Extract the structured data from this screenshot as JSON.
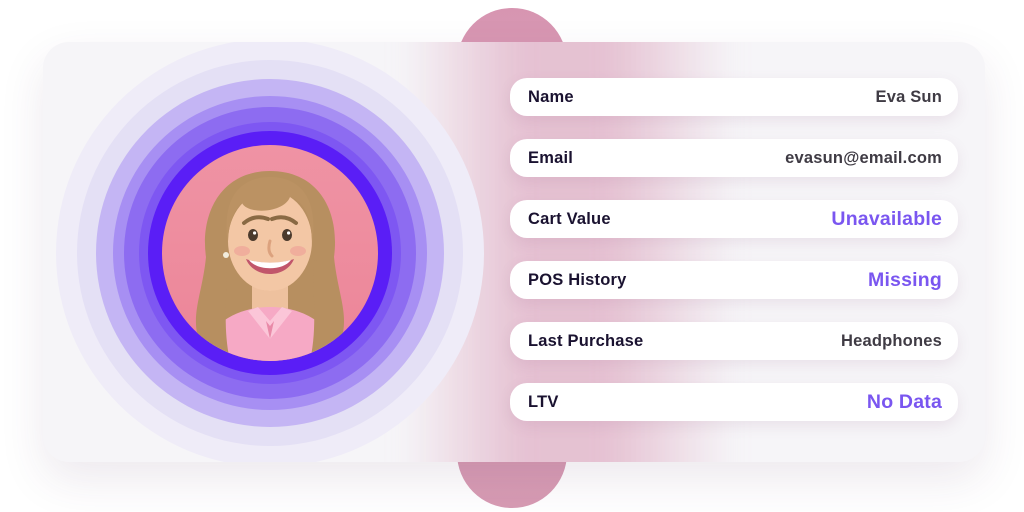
{
  "profile": {
    "rows": [
      {
        "label": "Name",
        "value": "Eva Sun",
        "accent": false
      },
      {
        "label": "Email",
        "value": "evasun@email.com",
        "accent": false
      },
      {
        "label": "Cart Value",
        "value": "Unavailable",
        "accent": true
      },
      {
        "label": "POS History",
        "value": "Missing",
        "accent": true
      },
      {
        "label": "Last Purchase",
        "value": "Headphones",
        "accent": false
      },
      {
        "label": "LTV",
        "value": "No Data",
        "accent": true
      }
    ]
  },
  "avatar": {
    "description": "smiling woman with long blonde hair in a pink shirt on a pink backdrop",
    "rings": [
      {
        "radius": 214,
        "color": "#efecf8"
      },
      {
        "radius": 193,
        "color": "#e4e0f5"
      },
      {
        "radius": 174,
        "color": "#c4b5f4"
      },
      {
        "radius": 157,
        "color": "#a78ff3"
      },
      {
        "radius": 146,
        "color": "#8d6cf1"
      },
      {
        "radius": 131,
        "color": "#7e57f2"
      },
      {
        "radius": 122,
        "color": "#5a1ef6"
      }
    ]
  },
  "colors": {
    "accent_purple": "#7a56f0",
    "vivid_ring": "#5a1ef6",
    "pink_capsule": "#d99db6",
    "photo_background": "#ee8da0",
    "card_background": "#f6f5f8",
    "pill_background": "#ffffff",
    "label_text": "#1a1230",
    "value_text": "#3f3b44"
  }
}
